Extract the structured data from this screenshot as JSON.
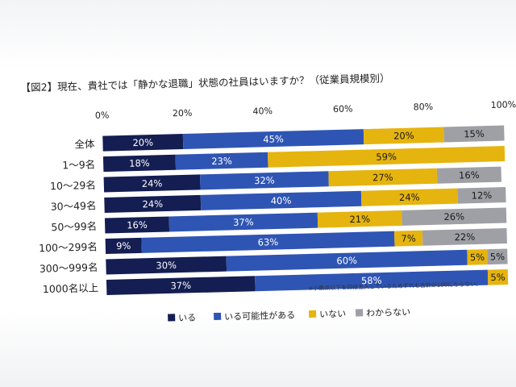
{
  "chart_data": {
    "type": "bar",
    "stacked": true,
    "orientation": "horizontal",
    "title": "【図2】現在、貴社では「静かな退職」状態の社員はいますか？（従業員規模別）",
    "xlim": [
      0,
      100
    ],
    "ticks": [
      "0%",
      "20%",
      "40%",
      "60%",
      "80%",
      "100%"
    ],
    "tick_values": [
      0,
      20,
      40,
      60,
      80,
      100
    ],
    "categories": [
      "全体",
      "1〜9名",
      "10〜29名",
      "30〜49名",
      "50〜99名",
      "100〜299名",
      "300〜999名",
      "1000名以上"
    ],
    "series": [
      {
        "name": "いる",
        "color": "#141e52",
        "values": [
          20,
          18,
          24,
          24,
          16,
          9,
          30,
          37
        ]
      },
      {
        "name": "いる可能性がある",
        "color": "#2f55b4",
        "values": [
          45,
          23,
          32,
          40,
          37,
          63,
          60,
          58
        ]
      },
      {
        "name": "いない",
        "color": "#e6b40f",
        "values": [
          20,
          59,
          27,
          24,
          21,
          7,
          5,
          5
        ]
      },
      {
        "name": "わからない",
        "color": "#9ea0a6",
        "values": [
          15,
          0,
          16,
          12,
          26,
          22,
          5,
          0
        ]
      }
    ],
    "data_labels": [
      [
        "20%",
        "45%",
        "20%",
        "15%"
      ],
      [
        "18%",
        "23%",
        "59%",
        ""
      ],
      [
        "24%",
        "32%",
        "27%",
        "16%"
      ],
      [
        "24%",
        "40%",
        "24%",
        "12%"
      ],
      [
        "16%",
        "37%",
        "21%",
        "26%"
      ],
      [
        "9%",
        "63%",
        "7%",
        "22%"
      ],
      [
        "30%",
        "60%",
        "5%",
        "5%"
      ],
      [
        "37%",
        "58%",
        "5%",
        ""
      ]
    ],
    "note": "※小数点以下を四捨五入しているためずれも合計が100にならない。",
    "legend_position": "bottom"
  }
}
